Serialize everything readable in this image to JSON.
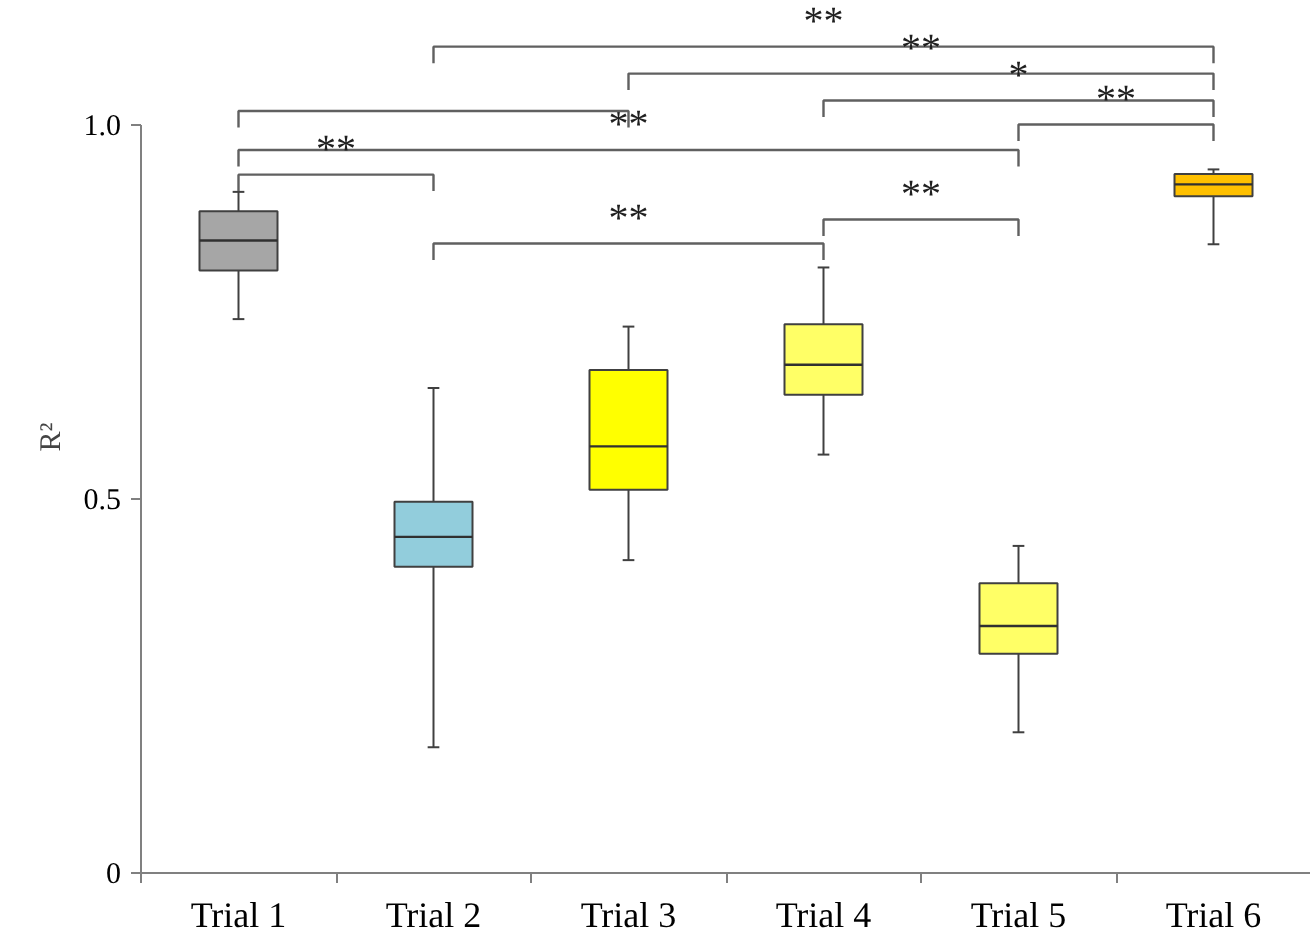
{
  "chart_data": {
    "type": "box",
    "ylabel": "R²",
    "categories": [
      "Trial 1",
      "Trial 2",
      "Trial 3",
      "Trial 4",
      "Trial 5",
      "Trial 6"
    ],
    "colors": [
      "#a6a6a6",
      "#92cddc",
      "#ffff00",
      "#ffff66",
      "#ffff66",
      "#ffc000"
    ],
    "boxes": [
      {
        "low": 0.74,
        "q1": 0.805,
        "median": 0.845,
        "q3": 0.884,
        "high": 0.91
      },
      {
        "low": 0.168,
        "q1": 0.409,
        "median": 0.449,
        "q3": 0.496,
        "high": 0.648
      },
      {
        "low": 0.418,
        "q1": 0.512,
        "median": 0.57,
        "q3": 0.672,
        "high": 0.73
      },
      {
        "low": 0.559,
        "q1": 0.639,
        "median": 0.679,
        "q3": 0.733,
        "high": 0.809
      },
      {
        "low": 0.188,
        "q1": 0.293,
        "median": 0.33,
        "q3": 0.387,
        "high": 0.437
      },
      {
        "low": 0.84,
        "q1": 0.904,
        "median": 0.92,
        "q3": 0.934,
        "high": 0.94
      }
    ],
    "ylim": [
      0,
      1.0
    ],
    "yticks": [
      0,
      0.5,
      {
        "value": 1.0,
        "label": "1.0"
      }
    ],
    "grid": false,
    "annotations": [
      "**",
      "**",
      "*",
      "**",
      "**",
      "**",
      "**",
      "**"
    ]
  }
}
